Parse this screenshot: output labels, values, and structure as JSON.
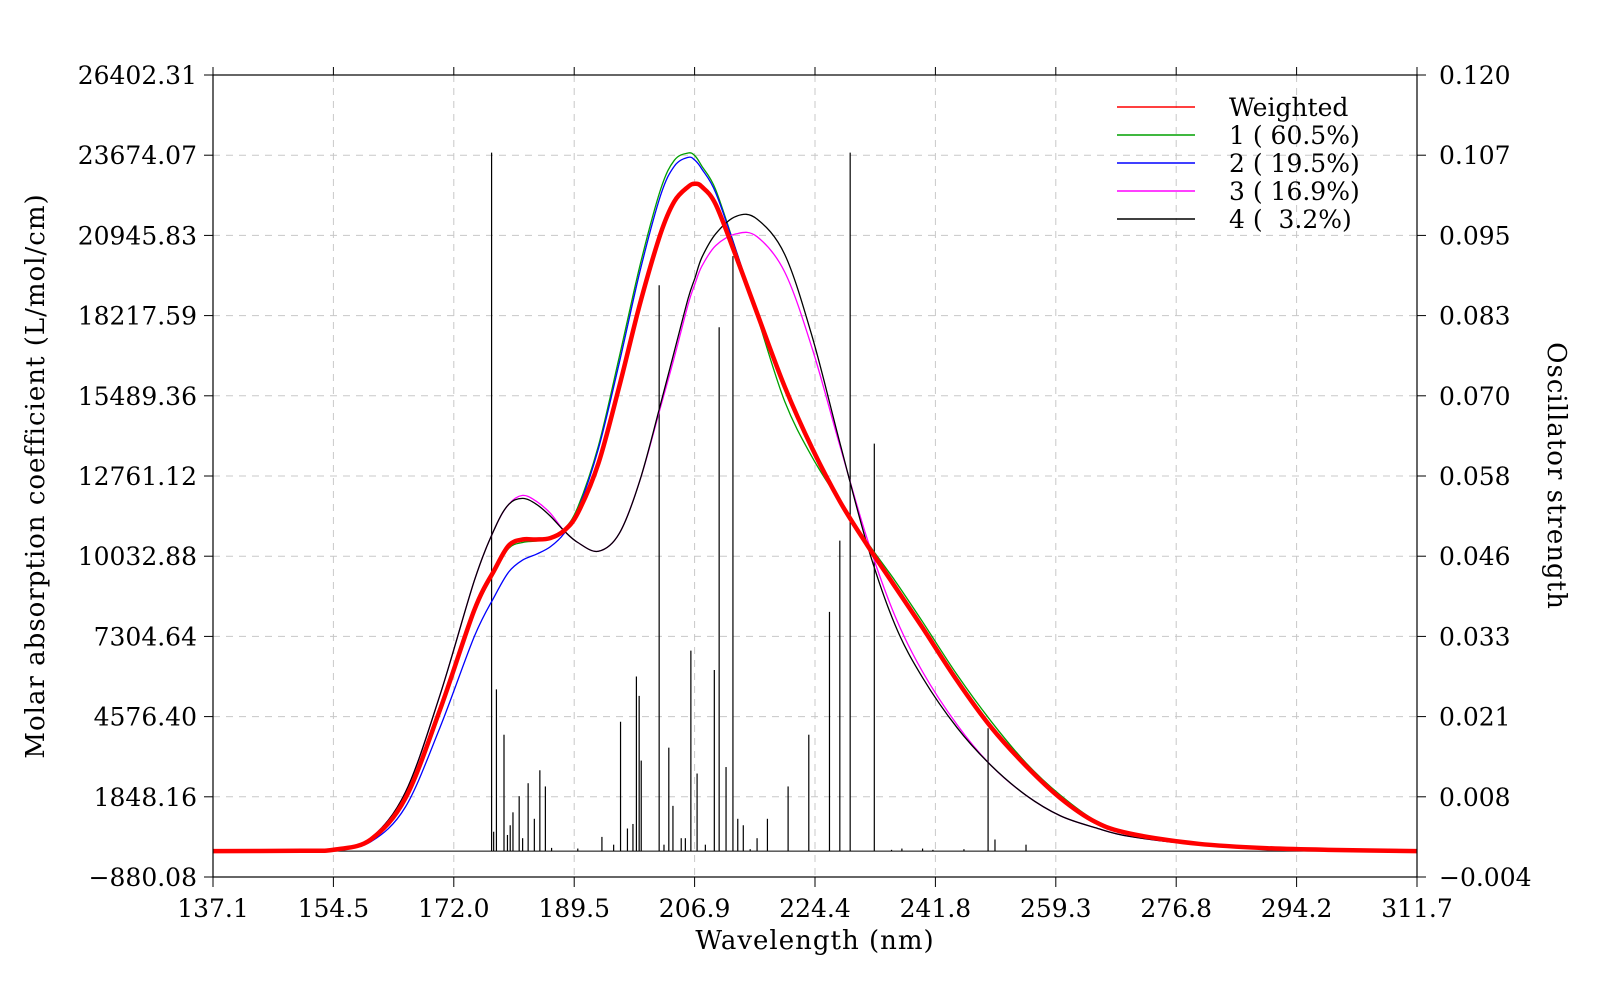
{
  "chart_data": {
    "type": "line",
    "title": "",
    "xlabel": "Wavelength (nm)",
    "ylabel": "Molar absorption coefficient (L/mol/cm)",
    "y2label": "Oscillator strength",
    "xlim": [
      137.1,
      311.7
    ],
    "ylim": [
      -880.08,
      26402.31
    ],
    "y2lim": [
      -0.004,
      0.12
    ],
    "x_ticks": [
      "137.1",
      "154.5",
      "172.0",
      "189.5",
      "206.9",
      "224.4",
      "241.8",
      "259.3",
      "276.8",
      "294.2",
      "311.7"
    ],
    "y_ticks": [
      "−880.08",
      "1848.16",
      "4576.40",
      "7304.64",
      "10032.88",
      "12761.12",
      "15489.36",
      "18217.59",
      "20945.83",
      "23674.07",
      "26402.31"
    ],
    "y2_ticks": [
      "−0.004",
      "0.008",
      "0.021",
      "0.033",
      "0.046",
      "0.058",
      "0.070",
      "0.083",
      "0.095",
      "0.107",
      "0.120"
    ],
    "grid": true,
    "legend_position": "top-right",
    "series": [
      {
        "name": "Weighted",
        "label": "Weighted",
        "color": "#ff0000",
        "x": [
          137.1,
          150,
          155,
          160,
          165,
          170,
          175,
          178,
          180,
          182,
          184,
          186,
          188,
          190,
          193,
          196,
          199,
          202,
          204,
          206,
          207,
          208,
          210,
          213,
          216,
          220,
          224,
          228,
          232,
          236,
          240,
          245,
          250,
          255,
          260,
          265,
          270,
          280,
          290,
          300,
          311.7
        ],
        "y": [
          0,
          10,
          60,
          400,
          1800,
          4800,
          8200,
          9600,
          10400,
          10600,
          10600,
          10650,
          10900,
          11500,
          13200,
          15800,
          18600,
          21000,
          22100,
          22600,
          22700,
          22600,
          22000,
          20200,
          18300,
          15800,
          13700,
          11900,
          10400,
          9000,
          7600,
          5800,
          4200,
          2900,
          1800,
          1000,
          600,
          250,
          100,
          40,
          0
        ]
      },
      {
        "name": "1 ( 60.5%)",
        "label": "1 ( 60.5%)",
        "color": "#00a000",
        "x": [
          137.1,
          150,
          155,
          160,
          165,
          170,
          175,
          178,
          180,
          182,
          184,
          186,
          188,
          190,
          193,
          196,
          199,
          202,
          204,
          206,
          207,
          208,
          210,
          213,
          216,
          220,
          224,
          228,
          232,
          236,
          240,
          245,
          250,
          255,
          260,
          265,
          270,
          280,
          290,
          300,
          311.7
        ],
        "y": [
          0,
          10,
          60,
          400,
          1800,
          4800,
          8100,
          9500,
          10300,
          10500,
          10550,
          10650,
          10950,
          11700,
          13800,
          16800,
          19900,
          22500,
          23500,
          23750,
          23650,
          23300,
          22500,
          20400,
          18200,
          15300,
          13400,
          11900,
          10500,
          9200,
          7800,
          6000,
          4400,
          3000,
          1900,
          1050,
          620,
          260,
          100,
          40,
          0
        ]
      },
      {
        "name": "2 ( 19.5%)",
        "label": "2 ( 19.5%)",
        "color": "#0000ff",
        "x": [
          137.1,
          150,
          155,
          160,
          165,
          170,
          175,
          178,
          180,
          182,
          184,
          186,
          188,
          190,
          193,
          196,
          199,
          202,
          204,
          206,
          207,
          208,
          210,
          213,
          216,
          220,
          224,
          228,
          232,
          236,
          240,
          245,
          250,
          255,
          260,
          265,
          270,
          280,
          290,
          300,
          311.7
        ],
        "y": [
          0,
          8,
          50,
          320,
          1500,
          4200,
          7300,
          8700,
          9500,
          9900,
          10100,
          10350,
          10800,
          11600,
          13700,
          16600,
          19700,
          22300,
          23300,
          23600,
          23500,
          23200,
          22400,
          20400,
          18300,
          15700,
          13700,
          11900,
          10400,
          9000,
          7600,
          5800,
          4200,
          2900,
          1800,
          1000,
          600,
          250,
          100,
          40,
          0
        ]
      },
      {
        "name": "3 ( 16.9%)",
        "label": "3 ( 16.9%)",
        "color": "#ff00ff",
        "x": [
          137.1,
          150,
          155,
          160,
          165,
          170,
          175,
          178,
          180,
          182,
          184,
          186,
          188,
          190,
          193,
          196,
          199,
          202,
          204,
          206,
          207,
          208,
          210,
          213,
          216,
          220,
          224,
          228,
          232,
          236,
          240,
          245,
          250,
          255,
          260,
          265,
          270,
          280,
          290,
          300,
          311.7
        ],
        "y": [
          0,
          10,
          70,
          450,
          2000,
          5300,
          9200,
          11000,
          11800,
          12100,
          11900,
          11500,
          10900,
          10500,
          10200,
          10800,
          12600,
          15100,
          16800,
          18600,
          19300,
          19900,
          20600,
          21000,
          20900,
          19700,
          17100,
          13800,
          10600,
          8000,
          6100,
          4300,
          2900,
          1900,
          1200,
          800,
          500,
          220,
          90,
          40,
          0
        ]
      },
      {
        "name": "4 (  3.2%)",
        "label": "4 (  3.2%)",
        "color": "#000000",
        "x": [
          137.1,
          150,
          155,
          160,
          165,
          170,
          175,
          178,
          180,
          182,
          184,
          186,
          188,
          190,
          193,
          196,
          199,
          202,
          204,
          206,
          207,
          208,
          210,
          213,
          216,
          220,
          224,
          228,
          232,
          236,
          240,
          245,
          250,
          255,
          260,
          265,
          270,
          280,
          290,
          300,
          311.7
        ],
        "y": [
          0,
          10,
          70,
          450,
          2000,
          5300,
          9200,
          11000,
          11800,
          12000,
          11800,
          11400,
          10900,
          10500,
          10200,
          10800,
          12600,
          15200,
          17000,
          18800,
          19500,
          20200,
          21000,
          21600,
          21500,
          20300,
          17500,
          13900,
          10400,
          7700,
          5900,
          4200,
          2900,
          1900,
          1200,
          800,
          500,
          220,
          90,
          40,
          0
        ]
      }
    ],
    "sticks": {
      "name": "Oscillator strength",
      "color": "#000000",
      "x": [
        177.5,
        177.8,
        178.2,
        179.3,
        179.8,
        180.2,
        180.6,
        181.5,
        182.0,
        182.8,
        183.7,
        184.5,
        185.3,
        186.2,
        190.0,
        193.5,
        195.2,
        196.2,
        197.2,
        198.0,
        198.5,
        198.9,
        199.2,
        201.8,
        202.5,
        203.2,
        203.8,
        205.0,
        205.6,
        206.4,
        207.3,
        208.5,
        209.8,
        210.5,
        211.5,
        212.5,
        213.2,
        214.0,
        215.0,
        216.0,
        217.5,
        220.5,
        223.5,
        226.5,
        228.0,
        229.5,
        233.0,
        235.5,
        237.0,
        240.0,
        241.5,
        246.0,
        249.5,
        250.5,
        255.0
      ],
      "y": [
        0.108,
        0.003,
        0.025,
        0.018,
        0.0025,
        0.004,
        0.006,
        0.0085,
        0.002,
        0.0105,
        0.005,
        0.0125,
        0.01,
        0.0005,
        0.0004,
        0.0022,
        0.001,
        0.02,
        0.0035,
        0.0042,
        0.027,
        0.024,
        0.014,
        0.0875,
        0.001,
        0.016,
        0.007,
        0.002,
        0.002,
        0.031,
        0.012,
        0.001,
        0.028,
        0.081,
        0.013,
        0.092,
        0.005,
        0.004,
        0.0003,
        0.002,
        0.005,
        0.01,
        0.018,
        0.037,
        0.048,
        0.108,
        0.063,
        0.0002,
        0.0004,
        0.0004,
        0.0002,
        0.0003,
        0.019,
        0.0018,
        0.001
      ]
    }
  }
}
